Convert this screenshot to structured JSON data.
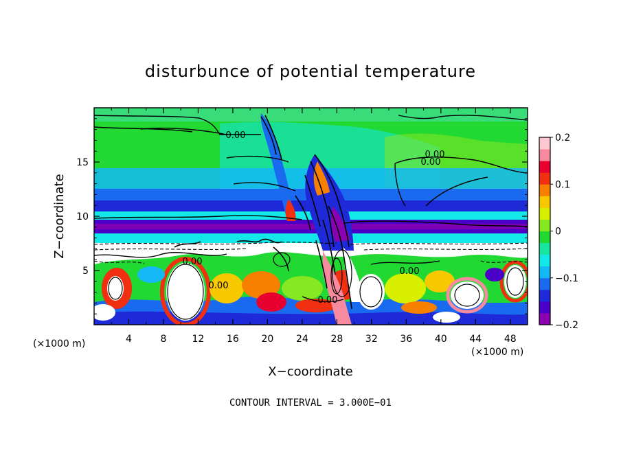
{
  "chart_data": {
    "type": "heatmap",
    "title": "disturbunce of potential temperature",
    "xlabel": "X−coordinate",
    "ylabel": "Z−coordinate",
    "x_unit": "(×1000 m)",
    "z_unit": "(×1000 m)",
    "xlim": [
      0,
      50
    ],
    "ylim": [
      0,
      20
    ],
    "x_ticks": [
      4,
      8,
      12,
      16,
      20,
      24,
      28,
      32,
      36,
      40,
      44,
      48
    ],
    "y_ticks": [
      5,
      10,
      15
    ],
    "colorbar": {
      "range": [
        -0.2,
        0.2
      ],
      "tick_values": [
        0.2,
        0.1,
        0,
        -0.1,
        -0.2
      ],
      "tick_labels": [
        "0.2",
        "0.1",
        "0",
        "−0.1",
        "−0.2"
      ],
      "colors": [
        "#8b00b0",
        "#4b00c8",
        "#1e2ad8",
        "#1a6af0",
        "#13b8f4",
        "#13e8e8",
        "#18e6a0",
        "#22d832",
        "#86e820",
        "#d8f000",
        "#f8c800",
        "#f88000",
        "#f03010",
        "#e80030",
        "#f88aa0",
        "#ffc8d0"
      ]
    },
    "contour_labels": [
      "0.00",
      "0.00",
      "0.00",
      "0.00",
      "0.00",
      "0.00",
      "0.00"
    ],
    "contour_interval_text": "CONTOUR INTERVAL =  3.000E−01"
  }
}
